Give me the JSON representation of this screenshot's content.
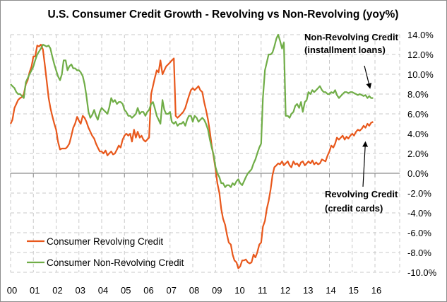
{
  "chart_data": {
    "type": "line",
    "title": "U.S. Consumer Credit Growth - Revolving vs Non-Revolving (yoy%)",
    "xlabel": "",
    "ylabel": "",
    "x_tick_labels": [
      "00",
      "01",
      "02",
      "03",
      "04",
      "05",
      "06",
      "07",
      "08",
      "09",
      "10",
      "11",
      "12",
      "13",
      "14",
      "15",
      "16"
    ],
    "xlim": [
      2000,
      2016.1
    ],
    "ylim": [
      -10,
      14
    ],
    "y_ticks": [
      14,
      12,
      10,
      8,
      6,
      4,
      2,
      0,
      -2,
      -4,
      -6,
      -8,
      -10
    ],
    "y_tick_labels": [
      "14.0%",
      "12.0%",
      "10.0%",
      "8.0%",
      "6.0%",
      "4.0%",
      "2.0%",
      "0.0%",
      "-2.0%",
      "-4.0%",
      "-6.0%",
      "-8.0%",
      "-10.0%"
    ],
    "y_axis_side": "right",
    "grid": true,
    "legend_position": "bottom-left",
    "series": [
      {
        "name": "Consumer Revolving Credit",
        "color": "#E8581C",
        "x": [
          2000.0,
          2000.08,
          2000.17,
          2000.25,
          2000.33,
          2000.42,
          2000.5,
          2000.58,
          2000.67,
          2000.75,
          2000.83,
          2000.92,
          2001.0,
          2001.08,
          2001.17,
          2001.25,
          2001.33,
          2001.42,
          2001.5,
          2001.58,
          2001.67,
          2001.75,
          2001.83,
          2001.92,
          2002.0,
          2002.08,
          2002.17,
          2002.25,
          2002.33,
          2002.42,
          2002.5,
          2002.58,
          2002.67,
          2002.75,
          2002.83,
          2002.92,
          2003.0,
          2003.08,
          2003.17,
          2003.25,
          2003.33,
          2003.42,
          2003.5,
          2003.58,
          2003.67,
          2003.75,
          2003.83,
          2003.92,
          2004.0,
          2004.08,
          2004.17,
          2004.25,
          2004.33,
          2004.42,
          2004.5,
          2004.58,
          2004.67,
          2004.75,
          2004.83,
          2004.92,
          2005.0,
          2005.08,
          2005.17,
          2005.25,
          2005.33,
          2005.42,
          2005.5,
          2005.58,
          2005.67,
          2005.75,
          2005.83,
          2005.92,
          2006.0,
          2006.08,
          2006.17,
          2006.25,
          2006.33,
          2006.42,
          2006.5,
          2006.58,
          2006.67,
          2006.75,
          2006.83,
          2006.92,
          2007.0,
          2007.08,
          2007.17,
          2007.25,
          2007.33,
          2007.42,
          2007.5,
          2007.58,
          2007.67,
          2007.75,
          2007.83,
          2007.92,
          2008.0,
          2008.08,
          2008.17,
          2008.25,
          2008.33,
          2008.42,
          2008.5,
          2008.58,
          2008.67,
          2008.75,
          2008.83,
          2008.92,
          2009.0,
          2009.08,
          2009.17,
          2009.25,
          2009.33,
          2009.42,
          2009.5,
          2009.58,
          2009.67,
          2009.75,
          2009.83,
          2009.92,
          2010.0,
          2010.08,
          2010.17,
          2010.25,
          2010.33,
          2010.42,
          2010.5,
          2010.58,
          2010.67,
          2010.75,
          2010.83,
          2010.92,
          2011.0,
          2011.08,
          2011.17,
          2011.25,
          2011.33,
          2011.42,
          2011.5,
          2011.58,
          2011.67,
          2011.75,
          2011.83,
          2011.92,
          2012.0,
          2012.08,
          2012.17,
          2012.25,
          2012.33,
          2012.42,
          2012.5,
          2012.58,
          2012.67,
          2012.75,
          2012.83,
          2012.92,
          2013.0,
          2013.08,
          2013.17,
          2013.25,
          2013.33,
          2013.42,
          2013.5,
          2013.58,
          2013.67,
          2013.75,
          2013.83,
          2013.92,
          2014.0,
          2014.08,
          2014.17,
          2014.25,
          2014.33,
          2014.42,
          2014.5,
          2014.58,
          2014.67,
          2014.75,
          2014.83,
          2014.92,
          2015.0,
          2015.08,
          2015.17,
          2015.25,
          2015.33,
          2015.42,
          2015.5,
          2015.58,
          2015.67,
          2015.75,
          2015.83,
          2015.92
        ],
        "y": [
          5.0,
          5.4,
          6.6,
          7.0,
          7.4,
          7.6,
          7.7,
          8.0,
          9.0,
          9.4,
          10.2,
          10.8,
          11.8,
          11.8,
          12.9,
          12.8,
          13.0,
          12.5,
          11.0,
          9.4,
          7.6,
          6.6,
          5.8,
          5.0,
          4.4,
          3.2,
          2.4,
          2.5,
          2.5,
          2.5,
          2.7,
          3.0,
          3.8,
          4.6,
          5.0,
          5.7,
          5.3,
          5.0,
          5.8,
          5.6,
          5.2,
          4.6,
          4.2,
          3.8,
          3.5,
          3.0,
          2.6,
          2.2,
          2.2,
          2.0,
          2.3,
          1.8,
          2.0,
          2.2,
          1.9,
          2.0,
          2.4,
          2.8,
          2.6,
          3.4,
          3.8,
          4.0,
          3.8,
          4.0,
          3.2,
          4.4,
          3.6,
          4.2,
          3.6,
          3.8,
          3.4,
          3.2,
          3.4,
          3.6,
          8.0,
          8.8,
          9.6,
          10.4,
          10.2,
          11.4,
          10.0,
          10.4,
          10.8,
          11.0,
          11.2,
          11.4,
          11.6,
          5.8,
          5.6,
          5.8,
          6.0,
          6.2,
          6.6,
          7.2,
          7.8,
          8.4,
          8.6,
          8.4,
          8.6,
          8.8,
          8.4,
          8.2,
          7.2,
          6.4,
          5.4,
          4.2,
          2.8,
          1.6,
          0.4,
          -1.0,
          -2.0,
          -3.6,
          -4.6,
          -5.2,
          -6.2,
          -7.0,
          -7.2,
          -8.2,
          -8.8,
          -9.0,
          -9.6,
          -9.4,
          -8.8,
          -8.8,
          -8.7,
          -9.0,
          -9.1,
          -9.0,
          -8.2,
          -8.5,
          -8.0,
          -7.2,
          -7.0,
          -5.4,
          -4.8,
          -3.6,
          -2.8,
          -1.6,
          -0.2,
          0.6,
          0.8,
          1.0,
          0.9,
          1.2,
          0.8,
          1.0,
          1.2,
          0.8,
          0.6,
          1.2,
          0.9,
          1.0,
          0.7,
          1.1,
          1.2,
          0.8,
          1.0,
          1.2,
          1.0,
          1.3,
          0.9,
          1.1,
          0.9,
          1.0,
          1.4,
          1.3,
          1.2,
          1.8,
          2.2,
          2.8,
          2.6,
          3.0,
          3.6,
          3.4,
          3.6,
          3.8,
          3.4,
          3.7,
          3.5,
          3.8,
          4.0,
          3.8,
          4.2,
          4.4,
          4.3,
          4.5,
          4.8,
          4.6,
          5.0,
          4.8,
          5.1,
          5.2
        ]
      },
      {
        "name": "Consumer Non-Revolving Credit",
        "color": "#70AD47",
        "x": [
          2000.0,
          2000.08,
          2000.17,
          2000.25,
          2000.33,
          2000.42,
          2000.5,
          2000.58,
          2000.67,
          2000.75,
          2000.83,
          2000.92,
          2001.0,
          2001.08,
          2001.17,
          2001.25,
          2001.33,
          2001.42,
          2001.5,
          2001.58,
          2001.67,
          2001.75,
          2001.83,
          2001.92,
          2002.0,
          2002.08,
          2002.17,
          2002.25,
          2002.33,
          2002.42,
          2002.5,
          2002.58,
          2002.67,
          2002.75,
          2002.83,
          2002.92,
          2003.0,
          2003.08,
          2003.17,
          2003.25,
          2003.33,
          2003.42,
          2003.5,
          2003.58,
          2003.67,
          2003.75,
          2003.83,
          2003.92,
          2004.0,
          2004.08,
          2004.17,
          2004.25,
          2004.33,
          2004.42,
          2004.5,
          2004.58,
          2004.67,
          2004.75,
          2004.83,
          2004.92,
          2005.0,
          2005.08,
          2005.17,
          2005.25,
          2005.33,
          2005.42,
          2005.5,
          2005.58,
          2005.67,
          2005.75,
          2005.83,
          2005.92,
          2006.0,
          2006.08,
          2006.17,
          2006.25,
          2006.33,
          2006.42,
          2006.5,
          2006.58,
          2006.67,
          2006.75,
          2006.83,
          2006.92,
          2007.0,
          2007.08,
          2007.17,
          2007.25,
          2007.33,
          2007.42,
          2007.5,
          2007.58,
          2007.67,
          2007.75,
          2007.83,
          2007.92,
          2008.0,
          2008.08,
          2008.17,
          2008.25,
          2008.33,
          2008.42,
          2008.5,
          2008.58,
          2008.67,
          2008.75,
          2008.83,
          2008.92,
          2009.0,
          2009.08,
          2009.17,
          2009.25,
          2009.33,
          2009.42,
          2009.5,
          2009.58,
          2009.67,
          2009.75,
          2009.83,
          2009.92,
          2010.0,
          2010.08,
          2010.17,
          2010.25,
          2010.33,
          2010.42,
          2010.5,
          2010.58,
          2010.67,
          2010.75,
          2010.83,
          2010.92,
          2011.0,
          2011.08,
          2011.17,
          2011.25,
          2011.33,
          2011.42,
          2011.5,
          2011.58,
          2011.67,
          2011.75,
          2011.83,
          2011.92,
          2012.0,
          2012.08,
          2012.17,
          2012.25,
          2012.33,
          2012.42,
          2012.5,
          2012.58,
          2012.67,
          2012.75,
          2012.83,
          2012.92,
          2013.0,
          2013.08,
          2013.17,
          2013.25,
          2013.33,
          2013.42,
          2013.5,
          2013.58,
          2013.67,
          2013.75,
          2013.83,
          2013.92,
          2014.0,
          2014.08,
          2014.17,
          2014.25,
          2014.33,
          2014.42,
          2014.5,
          2014.58,
          2014.67,
          2014.75,
          2014.83,
          2014.92,
          2015.0,
          2015.08,
          2015.17,
          2015.25,
          2015.33,
          2015.42,
          2015.5,
          2015.58,
          2015.67,
          2015.75,
          2015.83,
          2015.92
        ],
        "y": [
          9.0,
          8.8,
          8.6,
          8.2,
          8.0,
          8.0,
          7.8,
          7.6,
          9.2,
          9.6,
          10.0,
          10.4,
          10.8,
          11.4,
          12.0,
          12.3,
          12.6,
          13.0,
          12.9,
          12.8,
          12.9,
          12.6,
          11.8,
          11.0,
          10.4,
          9.8,
          9.4,
          10.0,
          11.4,
          11.4,
          10.4,
          10.8,
          11.0,
          10.6,
          10.6,
          10.4,
          10.4,
          10.2,
          9.8,
          9.0,
          7.8,
          6.2,
          5.6,
          5.9,
          6.4,
          5.8,
          5.4,
          6.2,
          6.6,
          6.4,
          6.2,
          6.0,
          6.6,
          7.6,
          7.2,
          7.4,
          7.0,
          7.2,
          7.2,
          7.0,
          6.4,
          6.2,
          5.8,
          5.8,
          5.6,
          5.8,
          6.0,
          6.6,
          6.0,
          6.2,
          6.2,
          5.8,
          6.2,
          6.4,
          7.0,
          7.2,
          6.6,
          5.8,
          5.4,
          5.0,
          7.4,
          6.4,
          6.0,
          6.0,
          6.2,
          5.2,
          5.0,
          5.2,
          4.8,
          5.0,
          5.0,
          5.2,
          4.8,
          5.4,
          5.8,
          5.8,
          5.2,
          5.8,
          5.6,
          5.2,
          5.4,
          5.6,
          5.4,
          5.0,
          4.4,
          3.4,
          2.6,
          1.8,
          0.6,
          0.0,
          -0.4,
          -1.0,
          -1.0,
          -1.4,
          -1.2,
          -1.2,
          -1.4,
          -1.0,
          -1.2,
          -0.8,
          -0.6,
          -1.0,
          -1.2,
          -0.8,
          -0.4,
          0.0,
          0.2,
          0.4,
          1.0,
          1.4,
          2.0,
          2.6,
          3.0,
          7.6,
          10.4,
          11.2,
          12.0,
          12.0,
          12.2,
          12.8,
          13.6,
          14.0,
          13.4,
          12.6,
          13.2,
          5.8,
          5.8,
          5.6,
          6.0,
          6.2,
          6.8,
          7.0,
          6.6,
          7.2,
          6.2,
          7.2,
          7.4,
          8.2,
          8.0,
          8.4,
          8.2,
          8.4,
          8.6,
          8.8,
          8.4,
          8.2,
          8.2,
          8.0,
          8.0,
          8.2,
          8.1,
          8.4,
          7.9,
          7.6,
          7.8,
          8.0,
          8.2,
          8.2,
          8.1,
          8.2,
          8.2,
          8.1,
          8.0,
          7.9,
          8.0,
          7.9,
          7.8,
          7.9,
          7.6,
          7.8,
          7.6,
          7.6
        ]
      }
    ],
    "annotations": [
      {
        "text_lines": [
          "Non-Revolving Credit",
          "(installment loans)"
        ],
        "arrow_to": {
          "x": 2015.9,
          "y": 7.8
        }
      },
      {
        "text_lines": [
          "Revolving Credit",
          "(credit cards)"
        ],
        "arrow_to": {
          "x": 2015.3,
          "y": 4.1
        }
      }
    ]
  }
}
